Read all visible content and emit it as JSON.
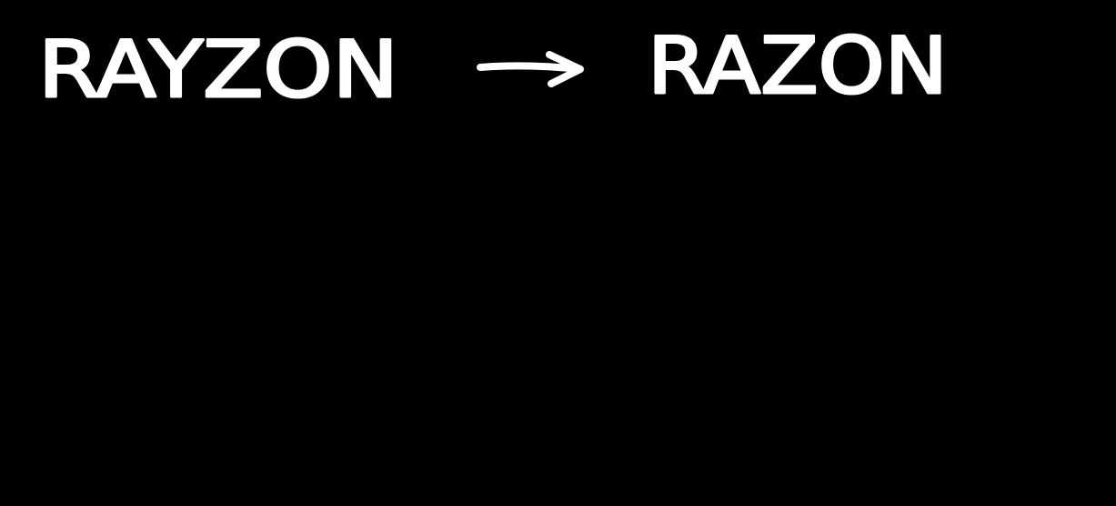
{
  "note": {
    "from": "RAYZON",
    "to": "RAZON"
  }
}
